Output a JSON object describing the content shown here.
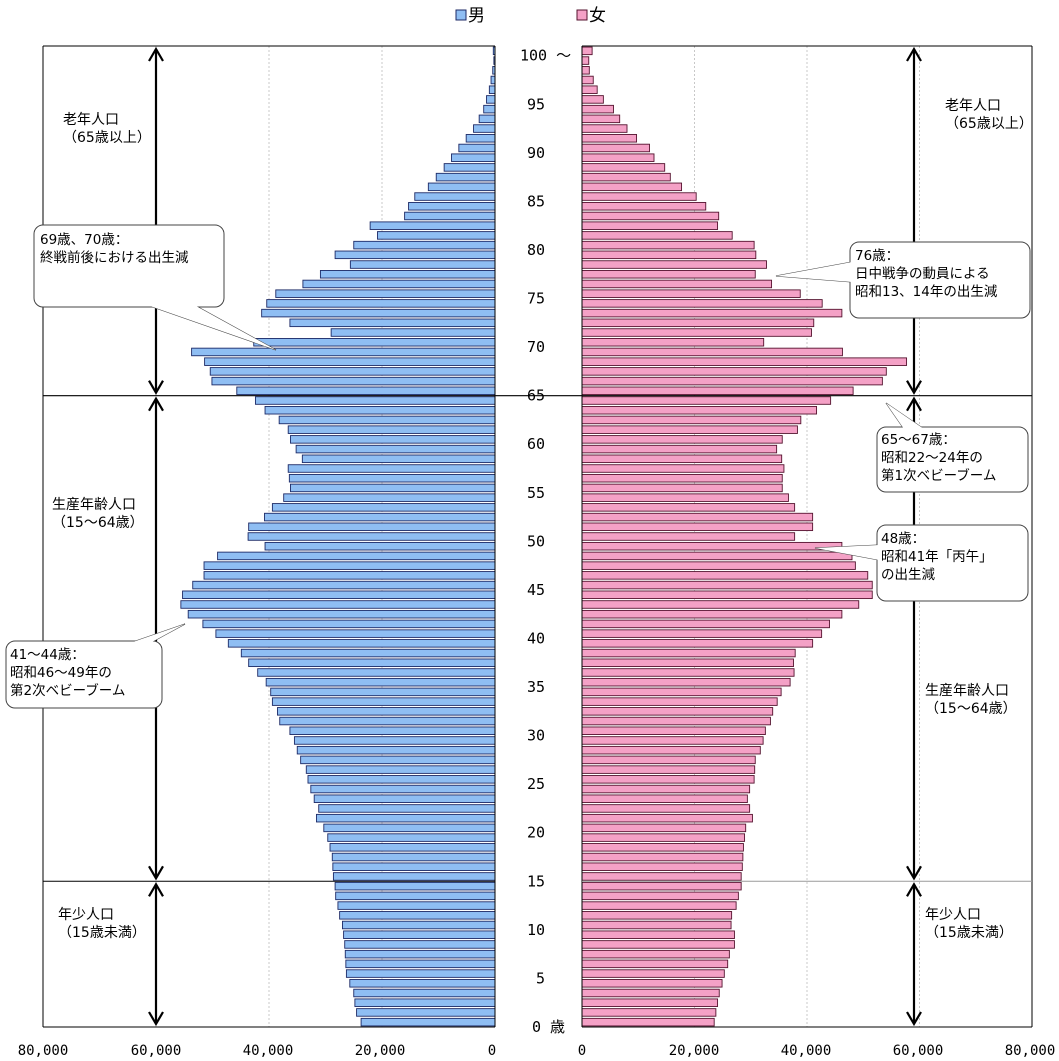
{
  "chart_data": {
    "type": "bar",
    "orientation": "horizontal-back-to-back",
    "ages": [
      0,
      1,
      2,
      3,
      4,
      5,
      6,
      7,
      8,
      9,
      10,
      11,
      12,
      13,
      14,
      15,
      16,
      17,
      18,
      19,
      20,
      21,
      22,
      23,
      24,
      25,
      26,
      27,
      28,
      29,
      30,
      31,
      32,
      33,
      34,
      35,
      36,
      37,
      38,
      39,
      40,
      41,
      42,
      43,
      44,
      45,
      46,
      47,
      48,
      49,
      50,
      51,
      52,
      53,
      54,
      55,
      56,
      57,
      58,
      59,
      60,
      61,
      62,
      63,
      64,
      65,
      66,
      67,
      68,
      69,
      70,
      71,
      72,
      73,
      74,
      75,
      76,
      77,
      78,
      79,
      80,
      81,
      82,
      83,
      84,
      85,
      86,
      87,
      88,
      89,
      90,
      91,
      92,
      93,
      94,
      95,
      96,
      97,
      98,
      99,
      100
    ],
    "series": [
      {
        "name": "男",
        "color": "#8fbef3",
        "values": [
          23700,
          24500,
          24800,
          25000,
          25700,
          26300,
          26400,
          26500,
          26600,
          26800,
          27000,
          27500,
          27800,
          28200,
          28300,
          28600,
          28700,
          28800,
          29200,
          29600,
          30300,
          31600,
          31200,
          32000,
          32600,
          33100,
          33400,
          34400,
          35000,
          35500,
          36300,
          38100,
          38500,
          39400,
          39700,
          40500,
          42000,
          43600,
          44900,
          47200,
          49400,
          51700,
          54300,
          55600,
          55300,
          53500,
          51500,
          51500,
          49100,
          40700,
          43700,
          43600,
          40800,
          39400,
          37400,
          36200,
          36400,
          36600,
          34100,
          35200,
          36200,
          36600,
          38200,
          40700,
          42400,
          45700,
          50100,
          50400,
          51400,
          53700,
          42700,
          29000,
          36300,
          41300,
          40400,
          38800,
          34000,
          30900,
          25600,
          28300,
          25000,
          20800,
          22100,
          16000,
          15300,
          14200,
          11800,
          10400,
          9000,
          7700,
          6400,
          5100,
          3800,
          2800,
          2000,
          1500,
          1000,
          700,
          400,
          200,
          300
        ]
      },
      {
        "name": "女",
        "color": "#f4a1c6",
        "values": [
          23500,
          23800,
          24100,
          24400,
          24900,
          25300,
          25900,
          26200,
          27100,
          27100,
          26500,
          26600,
          27400,
          27800,
          28300,
          28300,
          28500,
          28600,
          28700,
          28900,
          29100,
          30300,
          29800,
          29400,
          29800,
          30600,
          30700,
          30800,
          31700,
          32200,
          32600,
          33500,
          33900,
          34700,
          35400,
          37000,
          37700,
          37600,
          37900,
          41000,
          42600,
          44000,
          46200,
          49200,
          51600,
          51600,
          50800,
          48600,
          48000,
          46200,
          37800,
          41000,
          41000,
          37800,
          36700,
          35600,
          35600,
          35900,
          35500,
          34600,
          35600,
          38300,
          38900,
          41700,
          44200,
          48200,
          53400,
          54100,
          57700,
          46300,
          32300,
          40800,
          41200,
          46200,
          42700,
          38800,
          33700,
          30800,
          32800,
          30900,
          30600,
          26700,
          24100,
          24300,
          22000,
          20300,
          17700,
          15700,
          14700,
          12800,
          12000,
          9700,
          8000,
          6700,
          5600,
          3800,
          2700,
          2000,
          1300,
          1200,
          1800
        ]
      }
    ],
    "x_ticks_left": [
      "80,000",
      "60,000",
      "40,000",
      "20,000",
      "0"
    ],
    "x_ticks_right": [
      "0",
      "20,000",
      "40,000",
      "60,000",
      "80,000"
    ],
    "xlim": [
      0,
      80000
    ],
    "age_ticks": [
      "0 歳",
      "5",
      "10",
      "15",
      "20",
      "25",
      "30",
      "35",
      "40",
      "45",
      "50",
      "55",
      "60",
      "65",
      "70",
      "75",
      "80",
      "85",
      "90",
      "95",
      "100 ～"
    ],
    "legend": [
      "男",
      "女"
    ],
    "legend_placement": "top-center",
    "grid": "vertical"
  },
  "regions": {
    "elderly": [
      "老年人口",
      "（65歳以上）"
    ],
    "working": [
      "生産年齢人口",
      "（15～64歳）"
    ],
    "youth": [
      "年少人口",
      "（15歳未満）"
    ]
  },
  "annotations": {
    "a6970": [
      "69歳、70歳：",
      "終戦前後における出生減"
    ],
    "a76": [
      "76歳：",
      "日中戦争の動員による",
      "昭和13、14年の出生減"
    ],
    "a6567": [
      "65～67歳：",
      "昭和22～24年の",
      "第1次ベビーブーム"
    ],
    "a48": [
      "48歳：",
      "昭和41年「丙午」",
      "の出生減"
    ],
    "a4144": [
      "41～44歳：",
      "昭和46～49年の",
      "第2次ベビーブーム"
    ]
  }
}
